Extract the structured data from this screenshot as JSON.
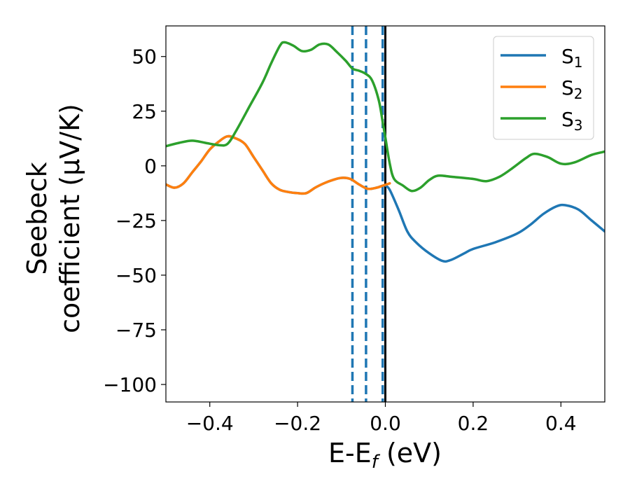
{
  "chart_data": {
    "type": "line",
    "xlabel": {
      "main": "E-E",
      "sub": "f",
      "unit": " (eV)"
    },
    "ylabel": {
      "line1": "Seebeck",
      "line2": "coefficient  (μV/K)"
    },
    "xlim": [
      -0.5,
      0.5
    ],
    "ylim": [
      -108,
      64
    ],
    "xticks": [
      -0.4,
      -0.2,
      0.0,
      0.2,
      0.4
    ],
    "xtick_labels": [
      "−0.4",
      "−0.2",
      "0.0",
      "0.2",
      "0.4"
    ],
    "yticks": [
      50,
      25,
      0,
      -25,
      -50,
      -75,
      -100
    ],
    "ytick_labels": [
      "50",
      "25",
      "0",
      "−25",
      "−50",
      "−75",
      "−100"
    ],
    "grid": false,
    "legend_position": "top-right",
    "vlines": [
      {
        "x": -0.075,
        "style": "dashed",
        "color": "#1f77b4"
      },
      {
        "x": -0.044,
        "style": "dashed",
        "color": "#1f77b4"
      },
      {
        "x": -0.006,
        "style": "dashed",
        "color": "#1f77b4"
      },
      {
        "x": 0.0,
        "style": "solid",
        "color": "#000000"
      }
    ],
    "series": [
      {
        "name": "S",
        "sub": "1",
        "color": "#1f77b4",
        "points": [
          [
            -0.5,
            -8.5
          ],
          [
            -0.48,
            -10
          ],
          [
            -0.46,
            -8
          ],
          [
            -0.44,
            -3
          ],
          [
            -0.42,
            2
          ],
          [
            -0.4,
            7.5
          ],
          [
            -0.38,
            11
          ],
          [
            -0.36,
            13.5
          ],
          [
            -0.34,
            12.5
          ],
          [
            -0.32,
            10
          ],
          [
            -0.3,
            4
          ],
          [
            -0.28,
            -2
          ],
          [
            -0.26,
            -8
          ],
          [
            -0.24,
            -11
          ],
          [
            -0.22,
            -12
          ],
          [
            -0.2,
            -12.5
          ],
          [
            -0.18,
            -12.5
          ],
          [
            -0.16,
            -10
          ],
          [
            -0.14,
            -8
          ],
          [
            -0.12,
            -6.5
          ],
          [
            -0.1,
            -5.5
          ],
          [
            -0.08,
            -6
          ],
          [
            -0.06,
            -8.5
          ],
          [
            -0.04,
            -10.5
          ],
          [
            -0.02,
            -10
          ],
          [
            -0.005,
            -9
          ],
          [
            0.0,
            -9
          ],
          [
            0.01,
            -11
          ],
          [
            0.03,
            -20
          ],
          [
            0.05,
            -30
          ],
          [
            0.07,
            -35
          ],
          [
            0.1,
            -40
          ],
          [
            0.13,
            -43.5
          ],
          [
            0.15,
            -43
          ],
          [
            0.18,
            -40
          ],
          [
            0.2,
            -38
          ],
          [
            0.25,
            -35
          ],
          [
            0.3,
            -31
          ],
          [
            0.33,
            -27
          ],
          [
            0.36,
            -22
          ],
          [
            0.39,
            -18.5
          ],
          [
            0.41,
            -18
          ],
          [
            0.44,
            -20
          ],
          [
            0.47,
            -25
          ],
          [
            0.5,
            -30
          ]
        ]
      },
      {
        "name": "S",
        "sub": "2",
        "color": "#ff7f0e",
        "points": [
          [
            -0.5,
            -8.5
          ],
          [
            -0.48,
            -10
          ],
          [
            -0.46,
            -8
          ],
          [
            -0.44,
            -3
          ],
          [
            -0.42,
            2
          ],
          [
            -0.4,
            7.5
          ],
          [
            -0.38,
            11
          ],
          [
            -0.36,
            13.5
          ],
          [
            -0.34,
            12.5
          ],
          [
            -0.32,
            10
          ],
          [
            -0.3,
            4
          ],
          [
            -0.28,
            -2
          ],
          [
            -0.26,
            -8
          ],
          [
            -0.24,
            -11
          ],
          [
            -0.22,
            -12
          ],
          [
            -0.2,
            -12.5
          ],
          [
            -0.18,
            -12.5
          ],
          [
            -0.16,
            -10
          ],
          [
            -0.14,
            -8
          ],
          [
            -0.12,
            -6.5
          ],
          [
            -0.1,
            -5.5
          ],
          [
            -0.08,
            -6
          ],
          [
            -0.06,
            -8.5
          ],
          [
            -0.04,
            -10.5
          ],
          [
            -0.02,
            -10
          ],
          [
            -0.005,
            -9
          ],
          [
            0.01,
            -8
          ]
        ]
      },
      {
        "name": "S",
        "sub": "3",
        "color": "#2ca02c",
        "points": [
          [
            -0.5,
            9
          ],
          [
            -0.47,
            10.5
          ],
          [
            -0.44,
            11.5
          ],
          [
            -0.41,
            10.5
          ],
          [
            -0.38,
            9.5
          ],
          [
            -0.36,
            10
          ],
          [
            -0.34,
            16
          ],
          [
            -0.31,
            27
          ],
          [
            -0.28,
            38
          ],
          [
            -0.26,
            47
          ],
          [
            -0.24,
            55
          ],
          [
            -0.23,
            56.5
          ],
          [
            -0.21,
            55
          ],
          [
            -0.19,
            52.5
          ],
          [
            -0.17,
            53
          ],
          [
            -0.15,
            55.5
          ],
          [
            -0.13,
            55.5
          ],
          [
            -0.11,
            52
          ],
          [
            -0.09,
            48
          ],
          [
            -0.075,
            44.5
          ],
          [
            -0.06,
            43.5
          ],
          [
            -0.044,
            42
          ],
          [
            -0.03,
            39
          ],
          [
            -0.015,
            30
          ],
          [
            -0.006,
            20
          ],
          [
            0.0,
            13
          ],
          [
            0.01,
            1
          ],
          [
            0.02,
            -6
          ],
          [
            0.04,
            -9
          ],
          [
            0.06,
            -11.5
          ],
          [
            0.08,
            -10
          ],
          [
            0.1,
            -6.5
          ],
          [
            0.12,
            -4.5
          ],
          [
            0.15,
            -5
          ],
          [
            0.2,
            -6
          ],
          [
            0.23,
            -7
          ],
          [
            0.26,
            -5
          ],
          [
            0.29,
            -1
          ],
          [
            0.32,
            3.5
          ],
          [
            0.34,
            5.5
          ],
          [
            0.37,
            4
          ],
          [
            0.4,
            1
          ],
          [
            0.43,
            1.5
          ],
          [
            0.47,
            5
          ],
          [
            0.5,
            6.5
          ]
        ]
      }
    ]
  }
}
